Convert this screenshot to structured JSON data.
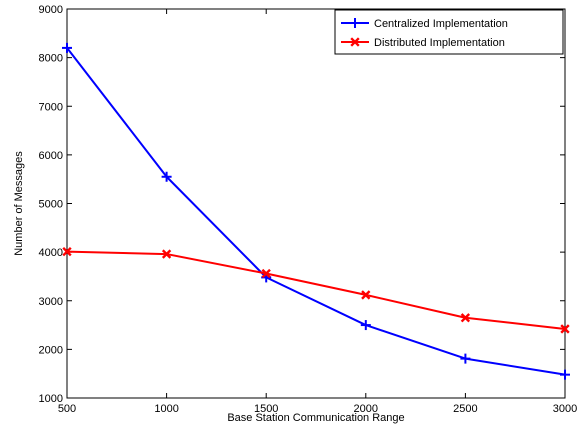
{
  "chart_data": {
    "type": "line",
    "xlabel": "Base Station Communication Range",
    "ylabel": "Number of Messages",
    "xlim": [
      500,
      3000
    ],
    "ylim": [
      1000,
      9000
    ],
    "xticks": [
      500,
      1000,
      1500,
      2000,
      2500,
      3000
    ],
    "yticks": [
      1000,
      2000,
      3000,
      4000,
      5000,
      6000,
      7000,
      8000,
      9000
    ],
    "x": [
      500,
      1000,
      1500,
      2000,
      2500,
      3000
    ],
    "grid": false,
    "legend_position": "top-right",
    "series": [
      {
        "name": "Centralized Implementation",
        "color": "#0000ff",
        "marker": "plus",
        "values": [
          8200,
          5550,
          3480,
          2500,
          1810,
          1480
        ]
      },
      {
        "name": "Distributed Implementation",
        "color": "#ff0000",
        "marker": "cross",
        "values": [
          4010,
          3960,
          3560,
          3120,
          2650,
          2420
        ]
      }
    ]
  }
}
